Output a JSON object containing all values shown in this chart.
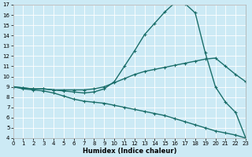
{
  "xlabel": "Humidex (Indice chaleur)",
  "bg_color": "#cceaf5",
  "line_color": "#1a6e6a",
  "grid_color": "#ffffff",
  "xmin": 0,
  "xmax": 23,
  "ymin": 4,
  "ymax": 17,
  "line1_x": [
    0,
    1,
    2,
    3,
    4,
    5,
    6,
    7,
    8,
    9,
    10,
    11,
    12,
    13,
    14,
    15,
    16,
    17,
    18,
    19,
    20,
    21,
    22,
    23
  ],
  "line1_y": [
    9.0,
    8.9,
    8.8,
    8.8,
    8.7,
    8.6,
    8.5,
    8.4,
    8.5,
    8.8,
    9.5,
    11.0,
    12.5,
    14.1,
    15.2,
    16.3,
    17.2,
    17.1,
    16.2,
    12.3,
    9.0,
    7.5,
    6.5,
    4.0
  ],
  "line2_x": [
    0,
    1,
    2,
    3,
    4,
    5,
    6,
    7,
    8,
    9,
    10,
    11,
    12,
    13,
    14,
    15,
    16,
    17,
    18,
    19,
    20,
    21,
    22,
    23
  ],
  "line2_y": [
    9.0,
    8.9,
    8.8,
    8.8,
    8.7,
    8.7,
    8.7,
    8.7,
    8.8,
    9.0,
    9.4,
    9.8,
    10.2,
    10.5,
    10.7,
    10.9,
    11.1,
    11.3,
    11.5,
    11.7,
    11.8,
    11.0,
    10.2,
    9.5
  ],
  "line3_x": [
    0,
    1,
    2,
    3,
    4,
    5,
    6,
    7,
    8,
    9,
    10,
    11,
    12,
    13,
    14,
    15,
    16,
    17,
    18,
    19,
    20,
    21,
    22,
    23
  ],
  "line3_y": [
    9.0,
    8.8,
    8.7,
    8.6,
    8.4,
    8.1,
    7.8,
    7.6,
    7.5,
    7.4,
    7.2,
    7.0,
    6.8,
    6.6,
    6.4,
    6.2,
    5.9,
    5.6,
    5.3,
    5.0,
    4.7,
    4.5,
    4.3,
    4.0
  ],
  "marker": "+",
  "markersize": 3,
  "linewidth": 1.0,
  "xticks": [
    0,
    1,
    2,
    3,
    4,
    5,
    6,
    7,
    8,
    9,
    10,
    11,
    12,
    13,
    14,
    15,
    16,
    17,
    18,
    19,
    20,
    21,
    22,
    23
  ],
  "yticks": [
    4,
    5,
    6,
    7,
    8,
    9,
    10,
    11,
    12,
    13,
    14,
    15,
    16,
    17
  ],
  "xlabel_fontsize": 6,
  "tick_fontsize": 5
}
